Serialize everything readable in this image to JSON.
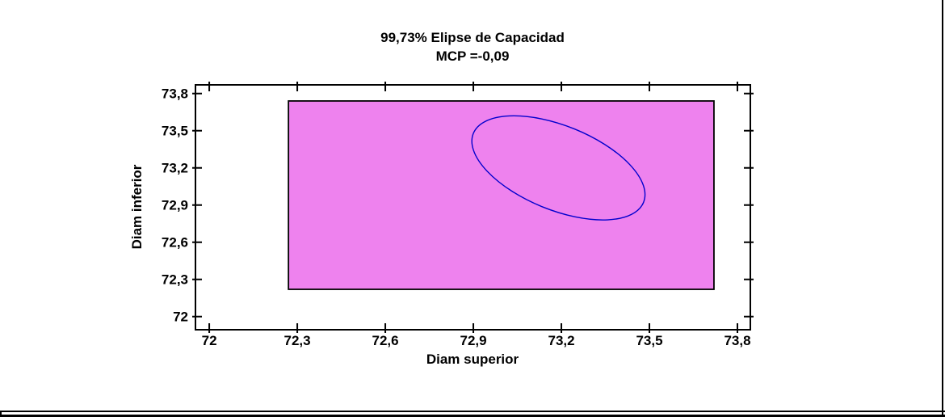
{
  "panel": {
    "background_color": "#FFFFFF",
    "border_color": "#000000"
  },
  "chart_data": {
    "type": "area",
    "subtype": "bivariate-capability-ellipse",
    "title": "99,73% Elipse de Capacidad",
    "subtitle": "MCP =-0,09",
    "xlabel": "Diam superior",
    "ylabel": "Diam inferior",
    "xlim": [
      71.953,
      73.844
    ],
    "ylim": [
      71.894,
      73.87
    ],
    "grid": "off",
    "legend": "none",
    "x_ticks": {
      "values": [
        72,
        72.3,
        72.6,
        72.9,
        73.2,
        73.5,
        73.8
      ],
      "labels": [
        "72",
        "72,3",
        "72,6",
        "72,9",
        "73,2",
        "73,5",
        "73,8"
      ]
    },
    "y_ticks": {
      "values": [
        72,
        72.3,
        72.6,
        72.9,
        73.2,
        73.5,
        73.8
      ],
      "labels": [
        "72",
        "72,3",
        "72,6",
        "72,9",
        "73,2",
        "73,5",
        "73,8"
      ]
    },
    "spec_region": {
      "x_range": [
        72.27,
        73.72
      ],
      "y_range": [
        72.22,
        73.74
      ],
      "fill_color": "#EE82EE",
      "stroke_color": "#000000"
    },
    "ellipse": {
      "center": [
        73.19,
        73.2
      ],
      "x_extent": [
        72.895,
        73.485
      ],
      "y_extent": [
        72.78,
        73.62
      ],
      "tilt_degrees": -22,
      "stroke_color": "#0000CD"
    },
    "frame_color": "#000000",
    "text_color": "#000000"
  }
}
